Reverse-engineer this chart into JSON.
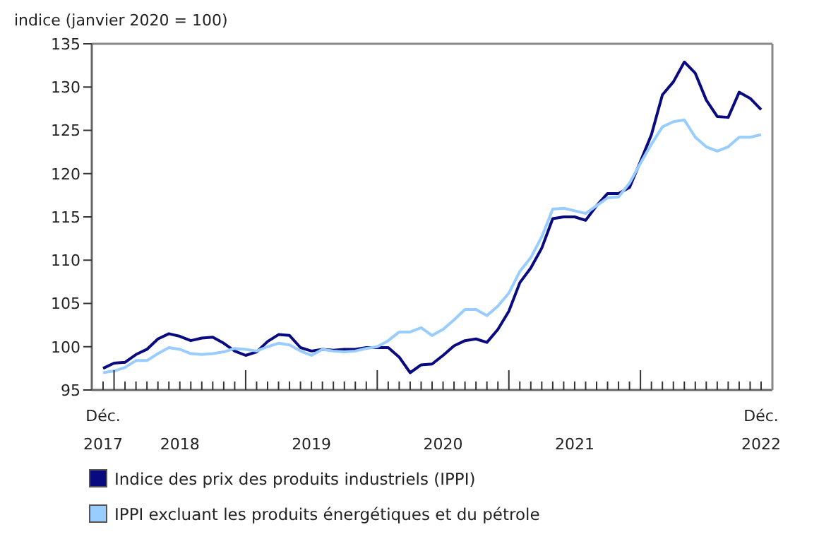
{
  "chart_data": {
    "type": "line",
    "ylabel": "indice (janvier 2020 = 100)",
    "categories": [
      "Déc.\n2017",
      null,
      null,
      null,
      null,
      null,
      null,
      "2018",
      null,
      null,
      null,
      null,
      null,
      null,
      null,
      null,
      null,
      null,
      null,
      "2019",
      null,
      null,
      null,
      null,
      null,
      null,
      null,
      null,
      null,
      null,
      null,
      "2020",
      null,
      null,
      null,
      null,
      null,
      null,
      null,
      null,
      null,
      null,
      null,
      "2021",
      null,
      null,
      null,
      null,
      null,
      null,
      null,
      null,
      null,
      null,
      null,
      null,
      null,
      null,
      null,
      null,
      "Déc.\n2022"
    ],
    "series": [
      {
        "name": "Indice des prix des produits industriels (IPPI)",
        "color": "#0a0a80",
        "values": [
          97.5,
          98.1,
          98.2,
          99.1,
          99.7,
          100.9,
          101.5,
          101.2,
          100.7,
          101.0,
          101.1,
          100.4,
          99.5,
          99.0,
          99.4,
          100.6,
          101.4,
          101.3,
          99.9,
          99.5,
          99.7,
          99.6,
          99.7,
          99.7,
          99.9,
          99.9,
          99.9,
          98.8,
          97.0,
          97.9,
          98.0,
          99.0,
          100.1,
          100.7,
          100.9,
          100.5,
          102.0,
          104.1,
          107.4,
          109.1,
          111.4,
          114.8,
          115.0,
          115.0,
          114.6,
          116.3,
          117.7,
          117.7,
          118.4,
          121.4,
          124.5,
          129.1,
          130.6,
          132.9,
          131.6,
          128.5,
          126.6,
          126.5,
          129.4,
          128.7,
          127.4
        ]
      },
      {
        "name": "IPPI excluant les produits énergétiques et du pétrole",
        "color": "#99ccff",
        "values": [
          97.0,
          97.2,
          97.6,
          98.4,
          98.4,
          99.2,
          99.9,
          99.7,
          99.2,
          99.1,
          99.2,
          99.4,
          99.8,
          99.7,
          99.5,
          100.0,
          100.4,
          100.2,
          99.5,
          99.0,
          99.7,
          99.5,
          99.4,
          99.5,
          99.8,
          100.0,
          100.7,
          101.7,
          101.7,
          102.2,
          101.3,
          102.0,
          103.1,
          104.3,
          104.3,
          103.6,
          104.7,
          106.2,
          108.7,
          110.3,
          112.7,
          115.9,
          116.0,
          115.7,
          115.4,
          116.3,
          117.2,
          117.3,
          118.9,
          121.2,
          123.4,
          125.4,
          126.0,
          126.2,
          124.2,
          123.1,
          122.6,
          123.1,
          124.2,
          124.2,
          124.5
        ]
      }
    ],
    "ylim": [
      95,
      135
    ],
    "yticks": [
      95,
      100,
      105,
      110,
      115,
      120,
      125,
      130,
      135
    ],
    "grid": false,
    "legend": "bottom",
    "marker": "none",
    "line_style": "solid"
  }
}
